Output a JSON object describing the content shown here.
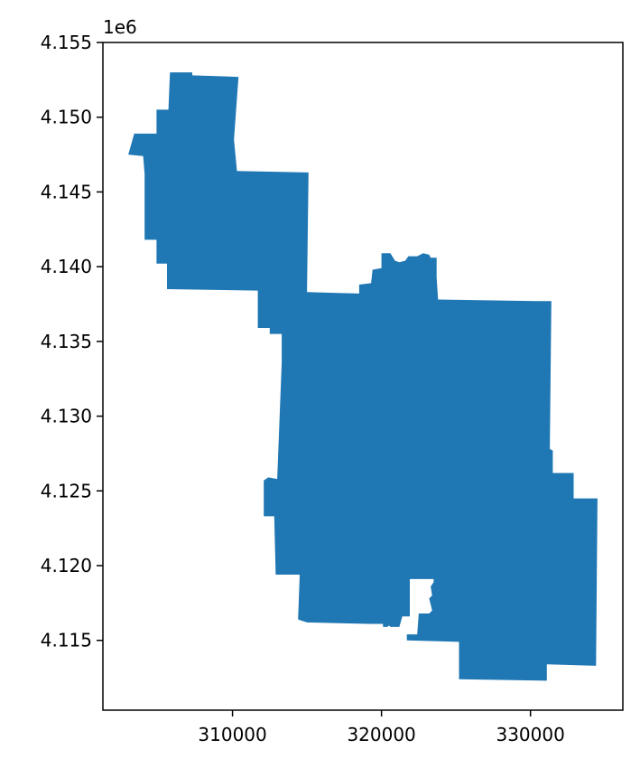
{
  "chart_data": {
    "type": "map",
    "title": "",
    "xlabel": "",
    "ylabel": "",
    "y_offset_label": "1e6",
    "grid": false,
    "xlim": [
      301300,
      336200
    ],
    "ylim": [
      4110330,
      4155000
    ],
    "x_ticks": [
      {
        "value": 310000,
        "label": "310000"
      },
      {
        "value": 320000,
        "label": "320000"
      },
      {
        "value": 330000,
        "label": "330000"
      }
    ],
    "y_ticks": [
      {
        "value": 4115000,
        "label": "4.115"
      },
      {
        "value": 4120000,
        "label": "4.120"
      },
      {
        "value": 4125000,
        "label": "4.125"
      },
      {
        "value": 4130000,
        "label": "4.130"
      },
      {
        "value": 4135000,
        "label": "4.135"
      },
      {
        "value": 4140000,
        "label": "4.140"
      },
      {
        "value": 4145000,
        "label": "4.145"
      },
      {
        "value": 4150000,
        "label": "4.150"
      },
      {
        "value": 4155000,
        "label": "4.155"
      }
    ],
    "fill_color": "#1f77b4",
    "polygon": [
      [
        305800,
        4153000
      ],
      [
        307300,
        4153000
      ],
      [
        307300,
        4152800
      ],
      [
        310400,
        4152700
      ],
      [
        310100,
        4148500
      ],
      [
        310300,
        4146400
      ],
      [
        315100,
        4146300
      ],
      [
        315000,
        4138300
      ],
      [
        318500,
        4138200
      ],
      [
        318500,
        4138800
      ],
      [
        319300,
        4138900
      ],
      [
        319400,
        4139800
      ],
      [
        320000,
        4139900
      ],
      [
        320000,
        4140900
      ],
      [
        320600,
        4140900
      ],
      [
        320900,
        4140400
      ],
      [
        321200,
        4140300
      ],
      [
        321600,
        4140400
      ],
      [
        321800,
        4140700
      ],
      [
        322400,
        4140700
      ],
      [
        322800,
        4140900
      ],
      [
        323200,
        4140800
      ],
      [
        323300,
        4140600
      ],
      [
        323700,
        4140600
      ],
      [
        323700,
        4139300
      ],
      [
        323800,
        4137800
      ],
      [
        330400,
        4137700
      ],
      [
        331400,
        4137700
      ],
      [
        331300,
        4127800
      ],
      [
        331500,
        4127700
      ],
      [
        331500,
        4126200
      ],
      [
        332900,
        4126200
      ],
      [
        332900,
        4124500
      ],
      [
        334500,
        4124500
      ],
      [
        334400,
        4113300
      ],
      [
        331100,
        4113400
      ],
      [
        331100,
        4112300
      ],
      [
        325200,
        4112400
      ],
      [
        325200,
        4114900
      ],
      [
        321700,
        4115000
      ],
      [
        321700,
        4115400
      ],
      [
        322400,
        4115400
      ],
      [
        322500,
        4116800
      ],
      [
        323200,
        4116800
      ],
      [
        323400,
        4117000
      ],
      [
        323300,
        4117400
      ],
      [
        323200,
        4117800
      ],
      [
        323400,
        4118000
      ],
      [
        323300,
        4118600
      ],
      [
        323500,
        4118900
      ],
      [
        323500,
        4119100
      ],
      [
        321900,
        4119100
      ],
      [
        321900,
        4116600
      ],
      [
        321400,
        4116600
      ],
      [
        321200,
        4115900
      ],
      [
        320600,
        4115900
      ],
      [
        320500,
        4116000
      ],
      [
        320400,
        4115900
      ],
      [
        320100,
        4115900
      ],
      [
        320100,
        4116100
      ],
      [
        319200,
        4116100
      ],
      [
        315000,
        4116200
      ],
      [
        314400,
        4116400
      ],
      [
        314500,
        4119200
      ],
      [
        314500,
        4119400
      ],
      [
        312900,
        4119400
      ],
      [
        312800,
        4123300
      ],
      [
        312100,
        4123300
      ],
      [
        312100,
        4125700
      ],
      [
        312400,
        4125900
      ],
      [
        313000,
        4125800
      ],
      [
        313300,
        4133600
      ],
      [
        313300,
        4135500
      ],
      [
        312500,
        4135500
      ],
      [
        312500,
        4135900
      ],
      [
        311700,
        4135900
      ],
      [
        311700,
        4138400
      ],
      [
        305600,
        4138500
      ],
      [
        305600,
        4140200
      ],
      [
        304900,
        4140200
      ],
      [
        304900,
        4141800
      ],
      [
        304100,
        4141800
      ],
      [
        304100,
        4146200
      ],
      [
        304000,
        4147400
      ],
      [
        303000,
        4147500
      ],
      [
        303400,
        4148900
      ],
      [
        304900,
        4148900
      ],
      [
        304900,
        4150500
      ],
      [
        305700,
        4150500
      ],
      [
        305800,
        4153000
      ]
    ]
  }
}
